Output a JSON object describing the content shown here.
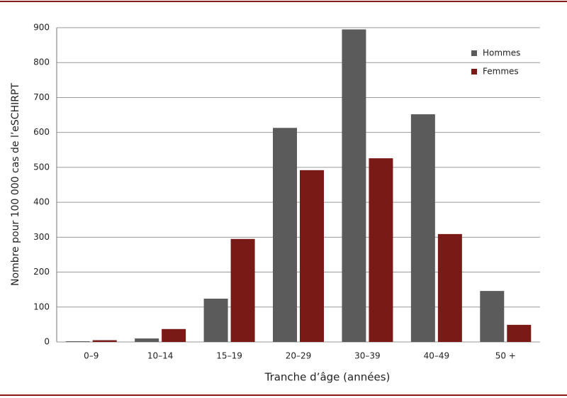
{
  "chart_data": {
    "type": "bar",
    "x_label": "Tranche d’âge (années)",
    "y_label": "Nombre pour 100 000 cas de l’eSCHIRPT",
    "categories": [
      "0–9",
      "10–14",
      "15–19",
      "20–29",
      "30–39",
      "40–49",
      "50 +"
    ],
    "series": [
      {
        "name": "Hommes",
        "color": "#5b5b5b",
        "values": [
          2,
          10,
          124,
          613,
          895,
          652,
          146
        ]
      },
      {
        "name": "Femmes",
        "color": "#7a1a17",
        "values": [
          5,
          37,
          295,
          492,
          526,
          309,
          49
        ]
      }
    ],
    "ylim": [
      0,
      900
    ],
    "yticks": [
      0,
      100,
      200,
      300,
      400,
      500,
      600,
      700,
      800,
      900
    ],
    "grid": true,
    "legend": "upper right"
  }
}
